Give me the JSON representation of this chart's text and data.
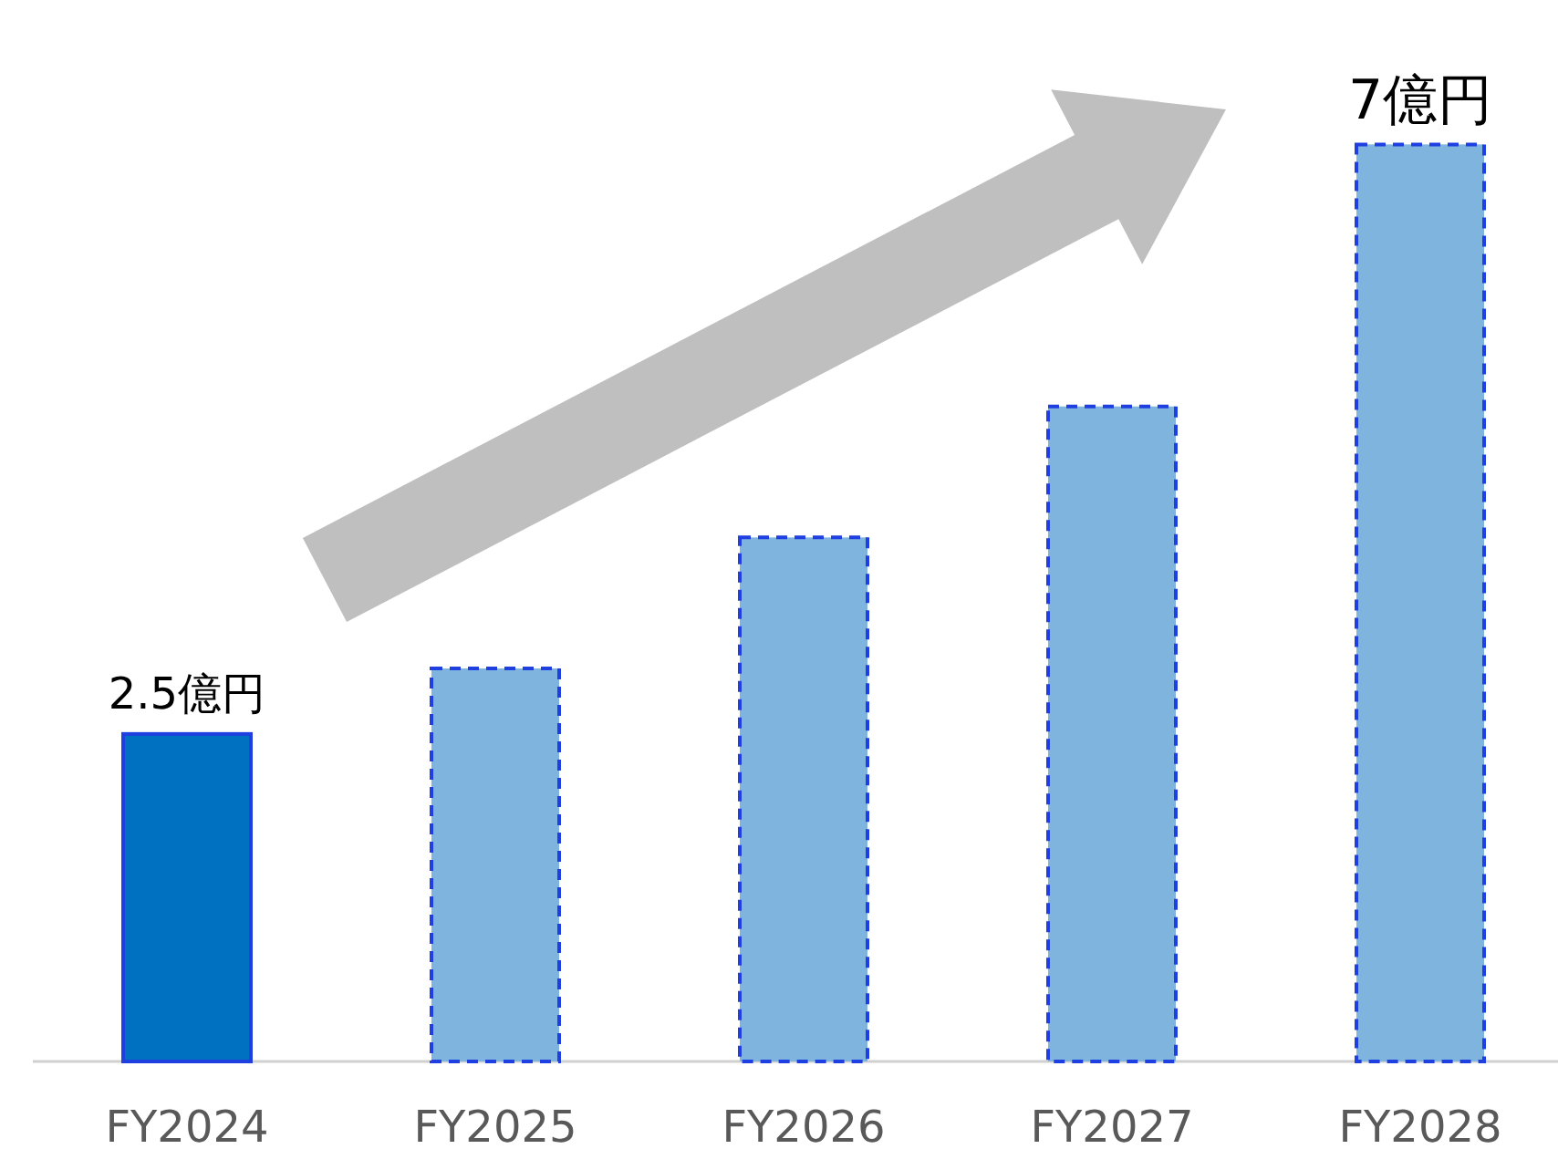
{
  "chart_data": {
    "type": "bar",
    "categories": [
      "FY2024",
      "FY2025",
      "FY2026",
      "FY2027",
      "FY2028"
    ],
    "series": [
      {
        "color": "#0070c0",
        "line_style": "solid",
        "values": [
          2.5,
          null,
          null,
          null,
          null
        ],
        "value_labels": [
          "2.5億円",
          null,
          null,
          null,
          null
        ]
      },
      {
        "color": "#7fb4de",
        "line_style": "dashed",
        "values": [
          null,
          3,
          4,
          5,
          7
        ],
        "value_labels": [
          null,
          null,
          null,
          null,
          "7億円"
        ]
      }
    ]
  }
}
